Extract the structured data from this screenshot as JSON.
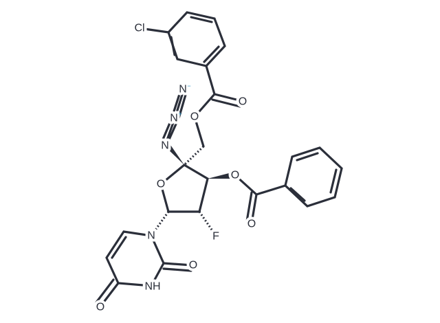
{
  "atoms": [
    {
      "label": "Cl"
    },
    {
      "label": "O"
    },
    {
      "label": "O"
    },
    {
      "label": "N"
    },
    {
      "label": "N"
    },
    {
      "label": "N"
    },
    {
      "label": "O"
    },
    {
      "label": "O"
    },
    {
      "label": "O"
    },
    {
      "label": "F"
    },
    {
      "label": "N"
    },
    {
      "label": "O"
    },
    {
      "label": "NH"
    },
    {
      "label": "O"
    }
  ],
  "charges": [
    "−",
    "+"
  ]
}
